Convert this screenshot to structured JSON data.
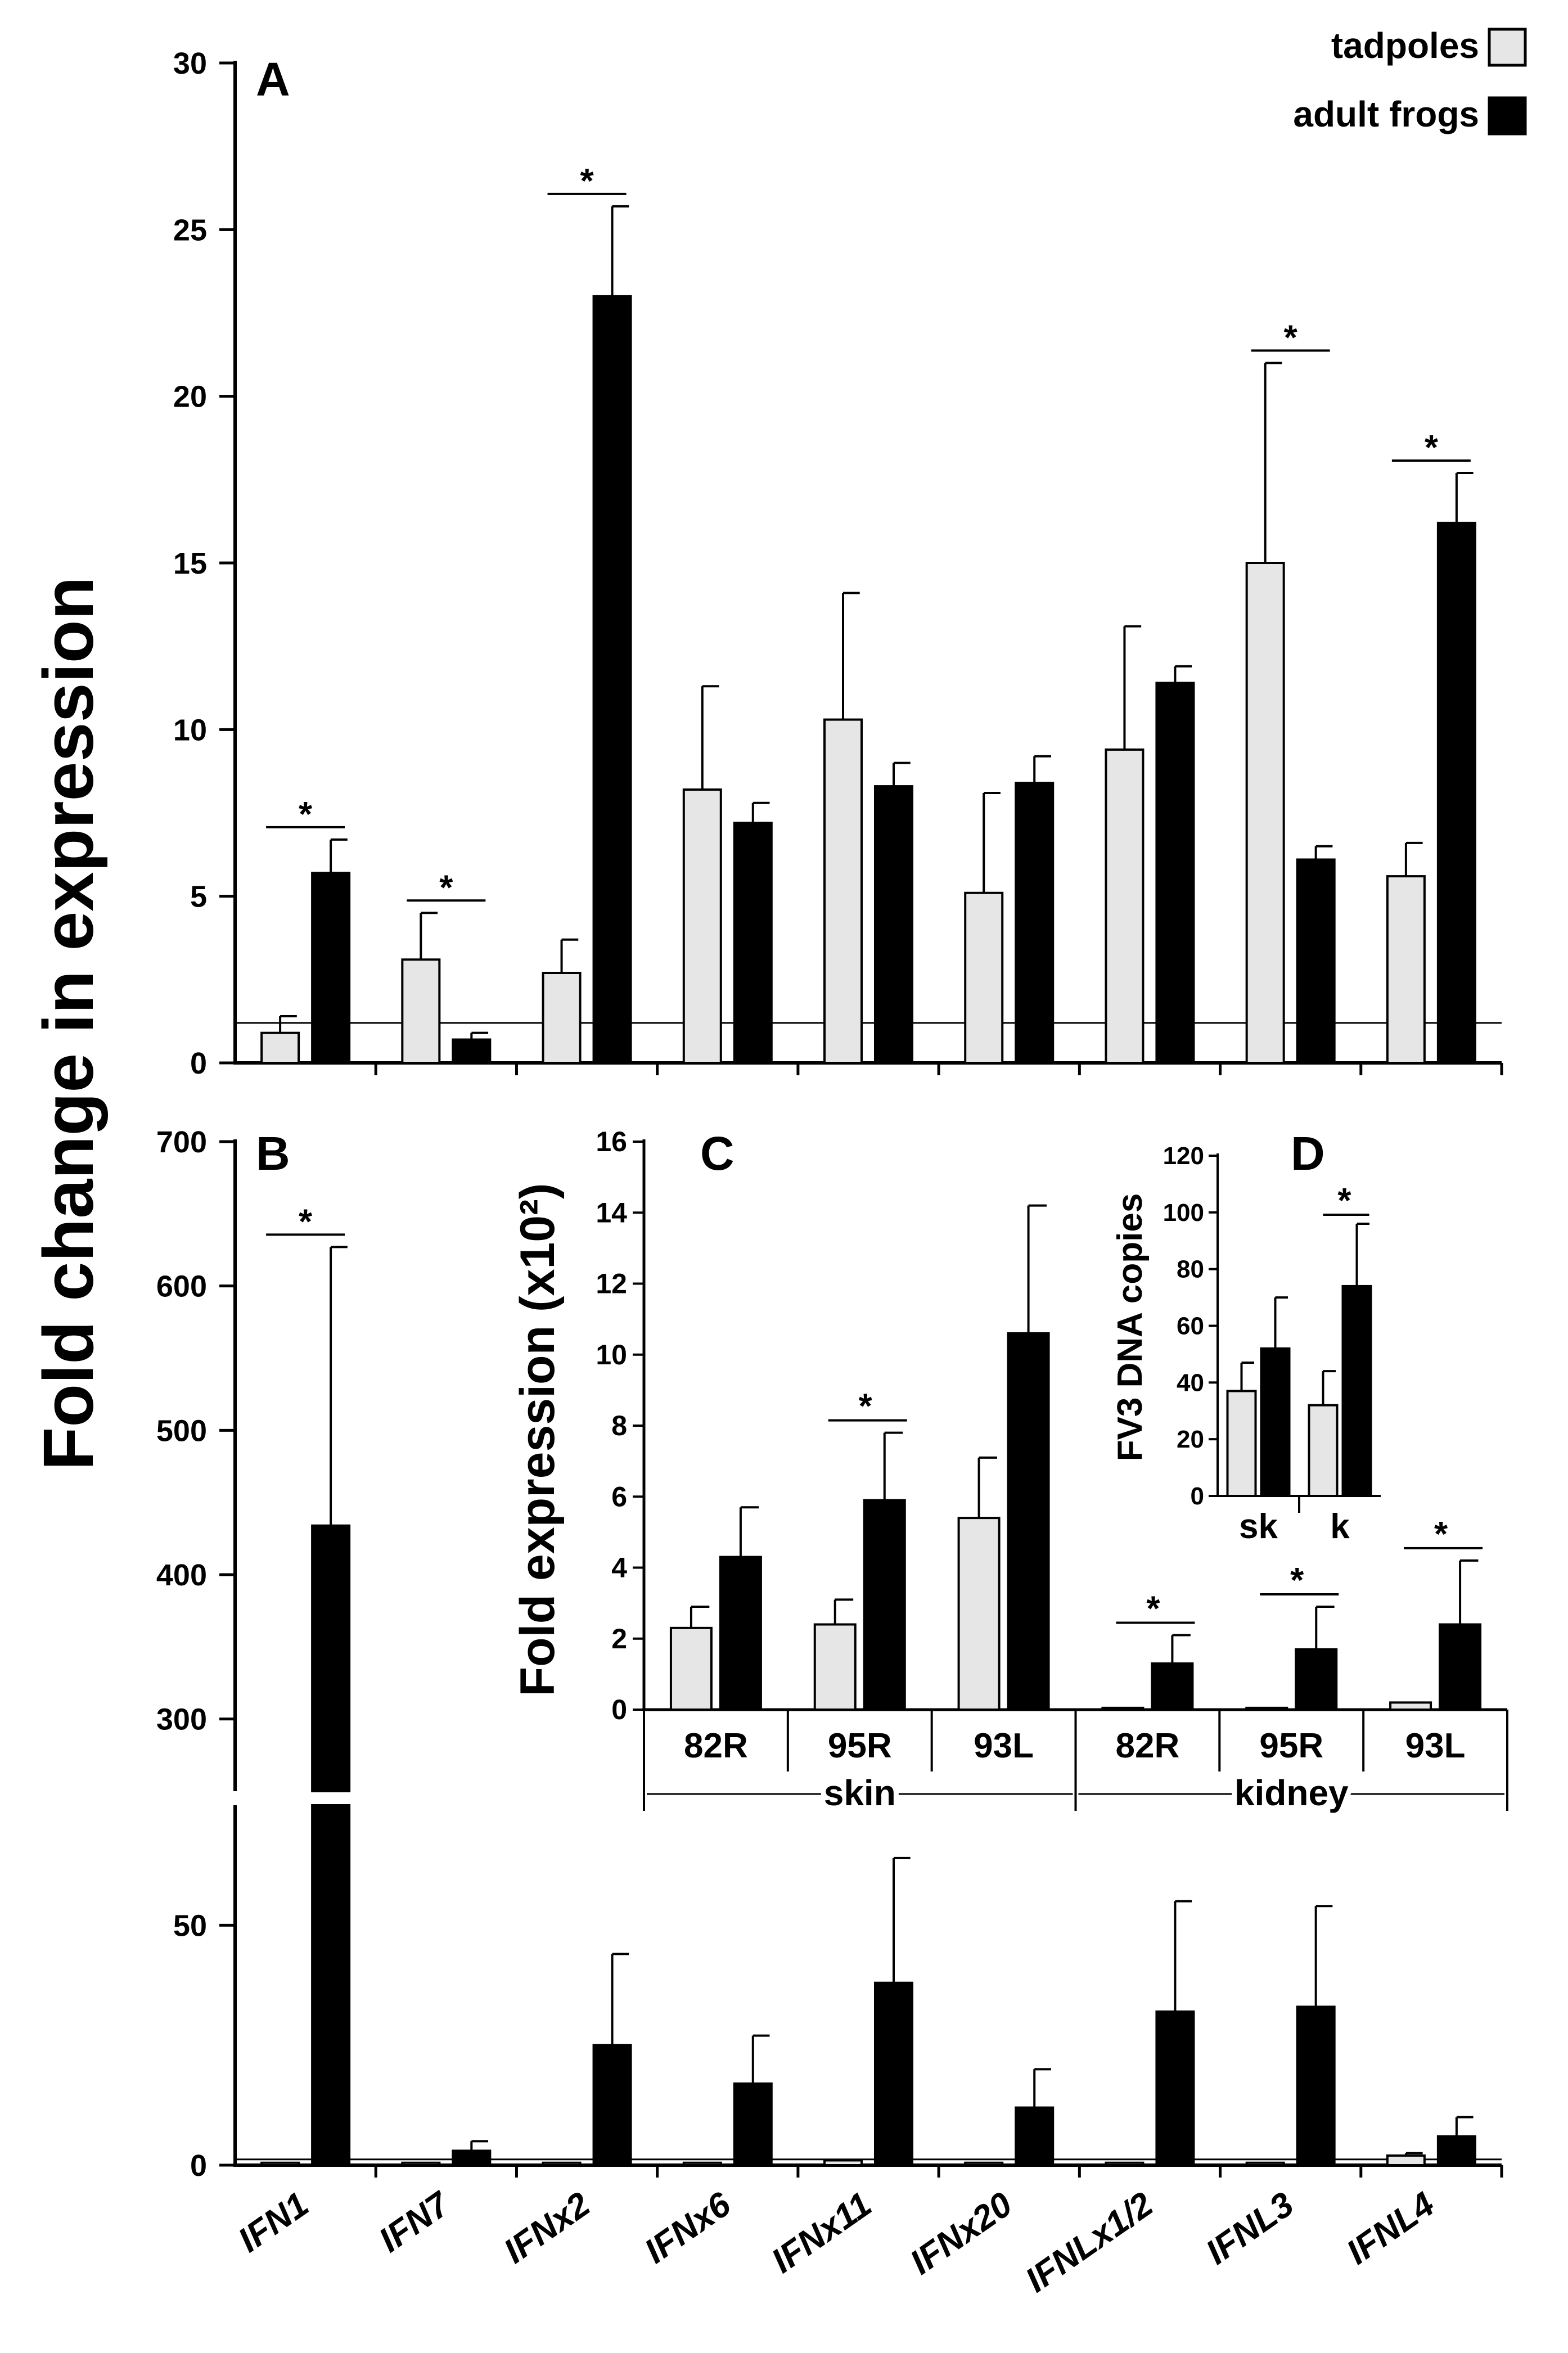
{
  "figure": {
    "y_title": "Fold change in expression",
    "legend": [
      {
        "label": "tadpoles",
        "color": "#e6e6e6"
      },
      {
        "label": "adult frogs",
        "color": "#000000"
      }
    ],
    "panel_letters": {
      "a": "A",
      "b": "B",
      "c": "C",
      "d": "D"
    },
    "significance_mark": "*"
  },
  "chart_data": [
    {
      "id": "A",
      "type": "bar",
      "title": "A",
      "ylabel": "Fold change in expression",
      "ylim": [
        0,
        30
      ],
      "yticks": [
        "0",
        "5",
        "10",
        "15",
        "20",
        "25",
        "30"
      ],
      "baseline": 1.2,
      "categories": [
        "IFN1",
        "IFN7",
        "IFNx2",
        "IFNx6",
        "IFNx11",
        "IFNx20",
        "IFNLx1/2",
        "IFNL3",
        "IFNL4"
      ],
      "series": [
        {
          "name": "tadpoles",
          "values": [
            0.9,
            3.1,
            2.7,
            8.2,
            10.3,
            5.1,
            9.4,
            15.0,
            5.6
          ],
          "errors": [
            0.5,
            1.4,
            1.0,
            3.1,
            3.8,
            3.0,
            3.7,
            6.0,
            1.0
          ]
        },
        {
          "name": "adult frogs",
          "values": [
            5.7,
            0.7,
            23.0,
            7.2,
            8.3,
            8.4,
            11.4,
            6.1,
            16.2
          ],
          "errors": [
            1.0,
            0.2,
            2.7,
            0.6,
            0.7,
            0.8,
            0.5,
            0.4,
            1.5
          ]
        }
      ],
      "significant": [
        true,
        true,
        true,
        false,
        false,
        false,
        false,
        true,
        true
      ]
    },
    {
      "id": "B",
      "type": "bar",
      "title": "B",
      "ylabel": "Fold change in expression",
      "ylim": [
        0,
        700
      ],
      "axis_break": [
        75,
        250
      ],
      "yticks": [
        "0",
        "50",
        "300",
        "400",
        "500",
        "600",
        "700"
      ],
      "baseline": 1.2,
      "categories": [
        "IFN1",
        "IFN7",
        "IFNx2",
        "IFNx6",
        "IFNx11",
        "IFNx20",
        "IFNLx1/2",
        "IFNL3",
        "IFNL4"
      ],
      "series": [
        {
          "name": "tadpoles",
          "values": [
            0.5,
            0.5,
            0.5,
            0.5,
            1.0,
            0.5,
            0.5,
            0.5,
            2.0
          ],
          "errors": [
            0,
            0,
            0,
            0,
            0,
            0,
            0,
            0,
            0.5
          ]
        },
        {
          "name": "adult frogs",
          "values": [
            434,
            3,
            25,
            17,
            38,
            12,
            32,
            33,
            6
          ],
          "errors": [
            193,
            2,
            19,
            10,
            26,
            8,
            23,
            21,
            4
          ]
        }
      ],
      "significant": [
        true,
        false,
        false,
        false,
        false,
        false,
        false,
        false,
        false
      ]
    },
    {
      "id": "C",
      "type": "bar",
      "title": "C",
      "ylabel": "Fold expression (x10²)",
      "ylim": [
        0,
        16
      ],
      "yticks": [
        "0",
        "2",
        "4",
        "6",
        "8",
        "10",
        "12",
        "14",
        "16"
      ],
      "categories": [
        "82R",
        "95R",
        "93L",
        "82R",
        "95R",
        "93L"
      ],
      "groups": [
        {
          "label": "skin"
        },
        {
          "label": "kidney"
        }
      ],
      "series": [
        {
          "name": "tadpoles",
          "values": [
            2.3,
            2.4,
            5.4,
            0.05,
            0.05,
            0.2
          ],
          "errors": [
            0.6,
            0.7,
            1.7,
            0,
            0,
            0
          ]
        },
        {
          "name": "adult frogs",
          "values": [
            4.3,
            5.9,
            10.6,
            1.3,
            1.7,
            2.4
          ],
          "errors": [
            1.4,
            1.9,
            3.6,
            0.8,
            1.2,
            1.8
          ]
        }
      ],
      "significant": [
        false,
        true,
        false,
        true,
        true,
        true
      ]
    },
    {
      "id": "D",
      "type": "bar",
      "title": "D",
      "ylabel": "FV3 DNA copies",
      "ylim": [
        0,
        120
      ],
      "yticks": [
        "0",
        "20",
        "40",
        "60",
        "80",
        "100",
        "120"
      ],
      "categories": [
        "sk",
        "k"
      ],
      "series": [
        {
          "name": "tadpoles",
          "values": [
            37,
            32
          ],
          "errors": [
            10,
            12
          ]
        },
        {
          "name": "adult frogs",
          "values": [
            52,
            74
          ],
          "errors": [
            18,
            22
          ]
        }
      ],
      "significant": [
        false,
        true
      ]
    }
  ]
}
